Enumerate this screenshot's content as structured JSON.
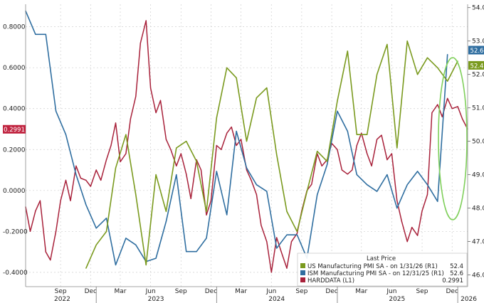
{
  "chart_data": {
    "type": "line",
    "title": "",
    "legend": {
      "title": "Last Price",
      "placement": "bottom-right",
      "entries": [
        {
          "label": "US Manufacturing PMI SA - on 1/31/26 (R1)",
          "value": "52.4",
          "color": "#7a9a1e"
        },
        {
          "label": "ISM Manufacturing PMI SA - on 12/31/25 (R1)",
          "value": "52.6",
          "color": "#2f6ea0"
        },
        {
          "label": "HARDDATA (L1)",
          "value": "0.2991",
          "color": "#a8213a"
        }
      ]
    },
    "left_axis": {
      "ticks": [
        "-0.4000",
        "-0.2000",
        "0.0000",
        "0.2000",
        "0.4000",
        "0.6000",
        "0.8000"
      ],
      "range": [
        -0.47,
        0.91
      ]
    },
    "right_axis": {
      "ticks": [
        "46.0",
        "47.0",
        "48.0",
        "49.0",
        "50.0",
        "51.0",
        "52.0",
        "53.0",
        "54.0"
      ],
      "range": [
        45.65,
        54.1
      ]
    },
    "x_axis": {
      "months": [
        "Sep",
        "Dec",
        "Mar",
        "Jun",
        "Sep",
        "Dec",
        "Mar",
        "Jun",
        "Sep",
        "Dec",
        "Mar",
        "Jun",
        "Sep",
        "Dec"
      ],
      "years": [
        "2022",
        "2023",
        "2024",
        "2025",
        "2026"
      ],
      "range": [
        "2022-06-01",
        "2026-01-31"
      ]
    },
    "badges": [
      {
        "text": "52.6",
        "axis": "right",
        "value": 52.6,
        "color": "#2f6ea0"
      },
      {
        "text": "52.4",
        "axis": "right",
        "value": 52.4,
        "color": "#7a9a1e"
      },
      {
        "text": "0.2991",
        "axis": "left",
        "value": 0.2991,
        "color": "#c0233f"
      }
    ],
    "series": [
      {
        "name": "ISM Manufacturing PMI SA",
        "axis": "right",
        "color": "#2f6ea0",
        "x": [
          "2022-06",
          "2022-07",
          "2022-08",
          "2022-09",
          "2022-10",
          "2022-11",
          "2022-12",
          "2023-01",
          "2023-02",
          "2023-03",
          "2023-04",
          "2023-05",
          "2023-06",
          "2023-07",
          "2023-08",
          "2023-09",
          "2023-10",
          "2023-11",
          "2023-12",
          "2024-01",
          "2024-02",
          "2024-03",
          "2024-04",
          "2024-05",
          "2024-06",
          "2024-07",
          "2024-08",
          "2024-09",
          "2024-10",
          "2024-11",
          "2024-12",
          "2025-01",
          "2025-02",
          "2025-03",
          "2025-04",
          "2025-05",
          "2025-06",
          "2025-07",
          "2025-08",
          "2025-09",
          "2025-10",
          "2025-11",
          "2025-12"
        ],
        "values": [
          53.9,
          53.2,
          53.2,
          50.9,
          50.2,
          49.0,
          48.1,
          47.4,
          47.7,
          46.3,
          47.1,
          46.9,
          46.4,
          46.5,
          47.6,
          49.0,
          46.7,
          46.7,
          47.1,
          49.1,
          47.8,
          50.3,
          49.2,
          48.7,
          48.5,
          46.8,
          47.2,
          47.2,
          46.5,
          48.4,
          49.3,
          50.9,
          50.3,
          49.0,
          48.7,
          48.5,
          49.0,
          48.0,
          48.7,
          49.1,
          48.7,
          48.2,
          52.6
        ]
      },
      {
        "name": "US Manufacturing PMI SA",
        "axis": "right",
        "color": "#7a9a1e",
        "x": [
          "2022-12",
          "2023-01",
          "2023-02",
          "2023-03",
          "2023-04",
          "2023-05",
          "2023-06",
          "2023-07",
          "2023-08",
          "2023-09",
          "2023-10",
          "2023-11",
          "2023-12",
          "2024-01",
          "2024-02",
          "2024-03",
          "2024-04",
          "2024-05",
          "2024-06",
          "2024-07",
          "2024-08",
          "2024-09",
          "2024-10",
          "2024-11",
          "2024-12",
          "2025-01",
          "2025-02",
          "2025-03",
          "2025-04",
          "2025-05",
          "2025-06",
          "2025-07",
          "2025-08",
          "2025-09",
          "2025-10",
          "2025-11",
          "2025-12",
          "2026-01"
        ],
        "values": [
          46.2,
          46.9,
          47.3,
          49.2,
          50.2,
          48.4,
          46.3,
          49.0,
          47.9,
          49.8,
          50.0,
          49.4,
          47.9,
          50.7,
          52.2,
          51.9,
          50.0,
          51.3,
          51.6,
          49.6,
          47.9,
          47.3,
          48.5,
          49.7,
          49.4,
          51.2,
          52.7,
          50.2,
          50.2,
          52.0,
          52.9,
          49.8,
          53.0,
          52.0,
          52.5,
          52.2,
          51.8,
          52.4
        ]
      },
      {
        "name": "HARDDATA",
        "axis": "left",
        "color": "#a8213a",
        "x": [
          "2022-06-01",
          "2022-06-15",
          "2022-07-01",
          "2022-07-15",
          "2022-08-01",
          "2022-08-15",
          "2022-09-01",
          "2022-09-15",
          "2022-10-01",
          "2022-10-15",
          "2022-11-01",
          "2022-11-15",
          "2022-12-01",
          "2022-12-15",
          "2023-01-01",
          "2023-01-15",
          "2023-02-01",
          "2023-02-15",
          "2023-03-01",
          "2023-03-15",
          "2023-04-01",
          "2023-04-15",
          "2023-05-01",
          "2023-05-15",
          "2023-06-01",
          "2023-06-15",
          "2023-07-01",
          "2023-07-15",
          "2023-08-01",
          "2023-08-15",
          "2023-09-01",
          "2023-09-15",
          "2023-10-01",
          "2023-10-15",
          "2023-11-01",
          "2023-11-15",
          "2023-12-01",
          "2023-12-15",
          "2024-01-01",
          "2024-01-15",
          "2024-02-01",
          "2024-02-15",
          "2024-03-01",
          "2024-03-15",
          "2024-04-01",
          "2024-04-15",
          "2024-05-01",
          "2024-05-15",
          "2024-06-01",
          "2024-06-15",
          "2024-07-01",
          "2024-07-15",
          "2024-08-01",
          "2024-08-15",
          "2024-09-01",
          "2024-09-15",
          "2024-10-01",
          "2024-10-15",
          "2024-11-01",
          "2024-11-15",
          "2024-12-01",
          "2024-12-15",
          "2025-01-01",
          "2025-01-15",
          "2025-02-01",
          "2025-02-15",
          "2025-03-01",
          "2025-03-15",
          "2025-04-01",
          "2025-04-15",
          "2025-05-01",
          "2025-05-15",
          "2025-06-01",
          "2025-06-15",
          "2025-07-01",
          "2025-07-15",
          "2025-08-01",
          "2025-08-15",
          "2025-09-01",
          "2025-09-15",
          "2025-10-01",
          "2025-10-15",
          "2025-11-01",
          "2025-11-15",
          "2025-12-01",
          "2025-12-15",
          "2026-01-01",
          "2026-01-15",
          "2026-01-31"
        ],
        "values": [
          -0.08,
          -0.2,
          -0.1,
          -0.05,
          -0.3,
          -0.34,
          -0.2,
          -0.05,
          0.05,
          -0.05,
          0.12,
          0.06,
          0.05,
          0.02,
          0.1,
          0.05,
          0.15,
          0.22,
          0.33,
          0.14,
          0.18,
          0.35,
          0.46,
          0.72,
          0.83,
          0.5,
          0.38,
          0.44,
          0.25,
          0.2,
          0.12,
          0.18,
          0.08,
          -0.04,
          0.15,
          0.1,
          -0.12,
          -0.05,
          0.22,
          0.2,
          0.28,
          0.31,
          0.22,
          0.25,
          0.1,
          0.05,
          -0.02,
          -0.17,
          -0.25,
          -0.4,
          -0.23,
          -0.3,
          -0.38,
          -0.25,
          -0.21,
          -0.1,
          0.0,
          0.03,
          0.18,
          0.12,
          0.15,
          0.23,
          0.2,
          0.1,
          0.08,
          0.1,
          0.22,
          0.28,
          0.18,
          0.12,
          0.25,
          0.27,
          0.15,
          0.18,
          -0.05,
          -0.15,
          -0.25,
          -0.18,
          -0.22,
          -0.1,
          -0.02,
          0.38,
          0.42,
          0.36,
          0.45,
          0.4,
          0.41,
          0.35,
          0.3
        ]
      }
    ]
  }
}
